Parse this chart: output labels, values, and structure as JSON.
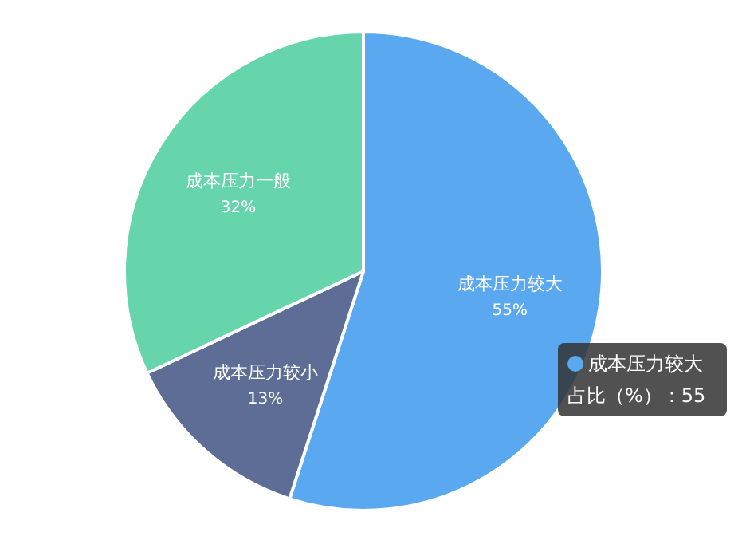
{
  "chart_data": {
    "type": "pie",
    "categories": [
      "成本压力较大",
      "成本压力较小",
      "成本压力一般"
    ],
    "values": [
      55,
      13,
      32
    ],
    "value_labels": [
      "55%",
      "13%",
      "32%"
    ],
    "colors": [
      "#5aa9f0",
      "#5d6d96",
      "#66d5ac"
    ],
    "annotations": [
      "成本压力较大",
      "占比（%）：55"
    ]
  }
}
